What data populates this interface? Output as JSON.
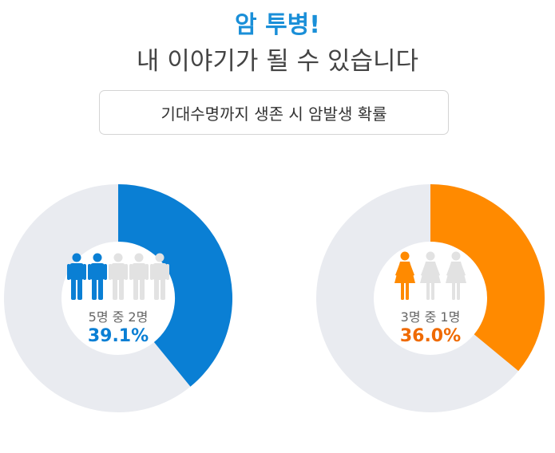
{
  "header": {
    "title": "암 투병!",
    "subtitle": "내 이야기가 될 수 있습니다",
    "label": "기대수명까지 생존 시 암발생 확률"
  },
  "colors": {
    "male": "#0a7fd4",
    "female": "#ff8a00",
    "female_text": "#ef6a00",
    "ring_bg": "#e9ebf0",
    "person_inactive": "#e2e2e2"
  },
  "chart_data": [
    {
      "type": "pie",
      "variant": "donut",
      "value": 39.1,
      "unit": "%",
      "value_label": "39.1%",
      "ratio_label": "5명 중 2명",
      "icon": "male-person-icon",
      "icons_total": 5,
      "icons_active": 2
    },
    {
      "type": "pie",
      "variant": "donut",
      "value": 36.0,
      "unit": "%",
      "value_label": "36.0%",
      "ratio_label": "3명 중 1명",
      "icon": "female-person-icon",
      "icons_total": 3,
      "icons_active": 1
    }
  ]
}
